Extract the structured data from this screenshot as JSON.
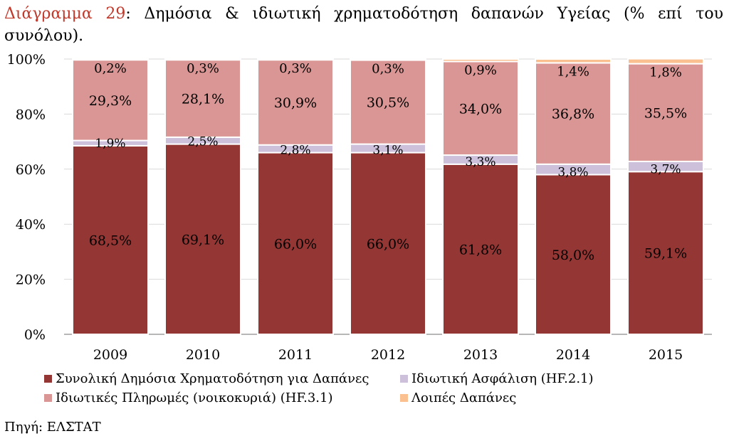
{
  "caption": {
    "number": "Διάγραμμα 29",
    "separator": ":",
    "text": "Δημόσια & ιδιωτική χρηματοδότηση δαπανών Υγείας (% επί του συνόλου)."
  },
  "source": "Πηγή: ΕΛΣΤΑΤ",
  "colors": {
    "public": "#943634",
    "insurance": "#ccc0da",
    "households": "#d99694",
    "other": "#fac090",
    "grid": "#d9d9d9",
    "axis": "#8c8c8c",
    "caption_number": "#c0392b"
  },
  "chart_data": {
    "type": "bar",
    "stacked": true,
    "categories": [
      "2009",
      "2010",
      "2011",
      "2012",
      "2013",
      "2014",
      "2015"
    ],
    "series": [
      {
        "name": "Συνολική Δημόσια Χρηματοδότηση για Δαπάνες",
        "color": "#943634",
        "values": [
          68.5,
          69.1,
          66.0,
          66.0,
          61.8,
          58.0,
          59.1
        ],
        "labels": [
          "68,5%",
          "69,1%",
          "66,0%",
          "66,0%",
          "61,8%",
          "58,0%",
          "59,1%"
        ]
      },
      {
        "name": "Ιδιωτική Ασφάλιση (HF.2.1)",
        "color": "#ccc0da",
        "values": [
          1.9,
          2.5,
          2.8,
          3.1,
          3.3,
          3.8,
          3.7
        ],
        "labels": [
          "1,9%",
          "2,5%",
          "2,8%",
          "3,1%",
          "3,3%",
          "3,8%",
          "3,7%"
        ]
      },
      {
        "name": "Ιδιωτικές Πληρωμές (νοικοκυριά) (HF.3.1)",
        "color": "#d99694",
        "values": [
          29.3,
          28.1,
          30.9,
          30.5,
          34.0,
          36.8,
          35.5
        ],
        "labels": [
          "29,3%",
          "28,1%",
          "30,9%",
          "30,5%",
          "34,0%",
          "36,8%",
          "35,5%"
        ]
      },
      {
        "name": "Λοιπές Δαπάνες",
        "color": "#fac090",
        "values": [
          0.2,
          0.3,
          0.3,
          0.3,
          0.9,
          1.4,
          1.8
        ],
        "labels": [
          "0,2%",
          "0,3%",
          "0,3%",
          "0,3%",
          "0,9%",
          "1,4%",
          "1,8%"
        ]
      }
    ],
    "yticks": [
      "0%",
      "20%",
      "40%",
      "60%",
      "80%",
      "100%"
    ],
    "ylim": [
      0,
      100
    ],
    "grid": true,
    "legend": "bottom",
    "legend_order": [
      0,
      1,
      2,
      3
    ]
  }
}
